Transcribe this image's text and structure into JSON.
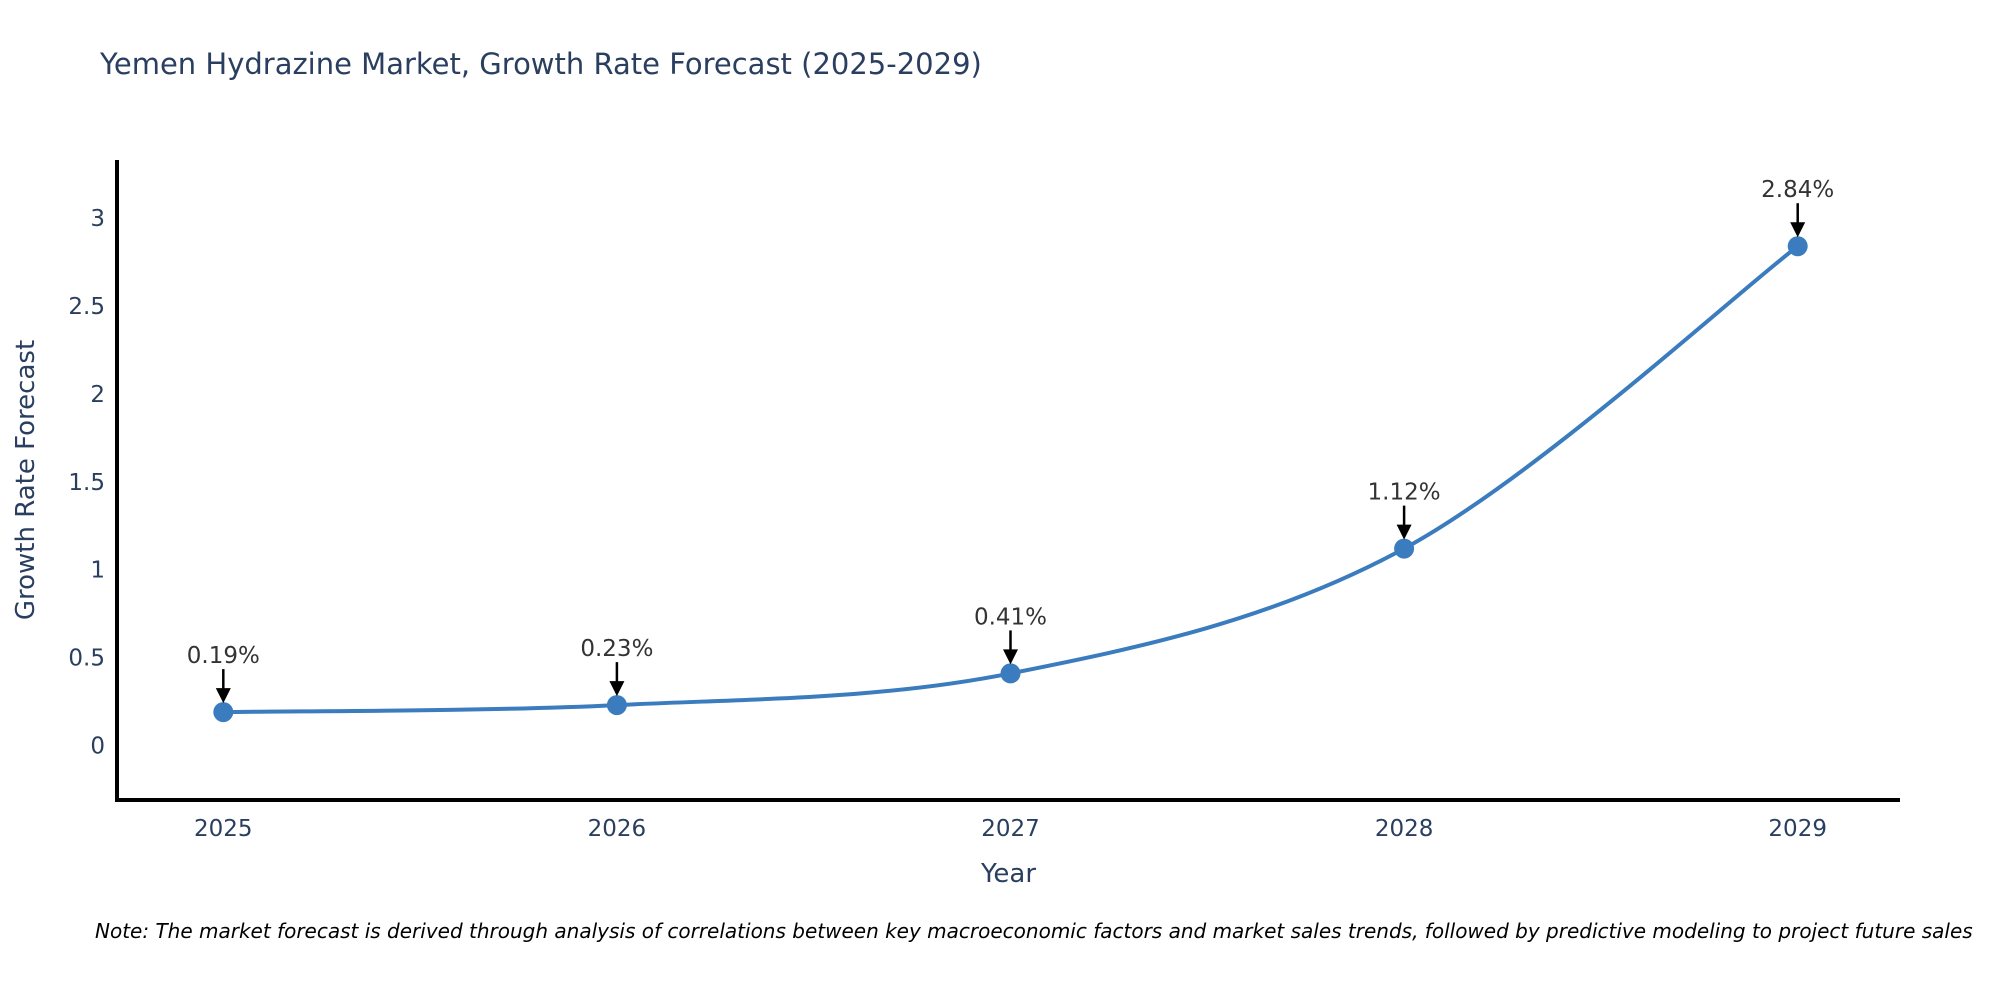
{
  "chart_data": {
    "type": "line",
    "title": "Yemen Hydrazine Market, Growth Rate Forecast (2025-2029)",
    "xlabel": "Year",
    "ylabel": "Growth Rate Forecast",
    "x": [
      2025,
      2026,
      2027,
      2028,
      2029
    ],
    "values": [
      0.19,
      0.23,
      0.41,
      1.12,
      2.84
    ],
    "point_labels": [
      "0.19%",
      "0.23%",
      "0.41%",
      "1.12%",
      "2.84%"
    ],
    "xticks": [
      "2025",
      "2026",
      "2027",
      "2028",
      "2029"
    ],
    "yticks": [
      "0",
      "0.5",
      "1",
      "1.5",
      "2",
      "2.5",
      "3"
    ],
    "ytick_values": [
      0,
      0.5,
      1,
      1.5,
      2,
      2.5,
      3
    ],
    "xlim": [
      2024.73,
      2029.26
    ],
    "ylim": [
      -0.31,
      3.33
    ],
    "grid": false,
    "legend": "none",
    "line_shape": "spline",
    "note": "Note: The market forecast is derived through analysis of correlations between key macroeconomic factors and market sales trends, followed by predictive modeling to project future sales",
    "colors": {
      "line": "#3a7cbd",
      "marker": "#3a7cbd",
      "axis": "#000000",
      "title_text": "#2a3f5f",
      "tick_text": "#2a3f5f",
      "axis_title_text": "#2a3f5f",
      "annotation_text": "#333333",
      "arrow": "#000000",
      "note_text": "#000000",
      "background": "#ffffff"
    }
  }
}
